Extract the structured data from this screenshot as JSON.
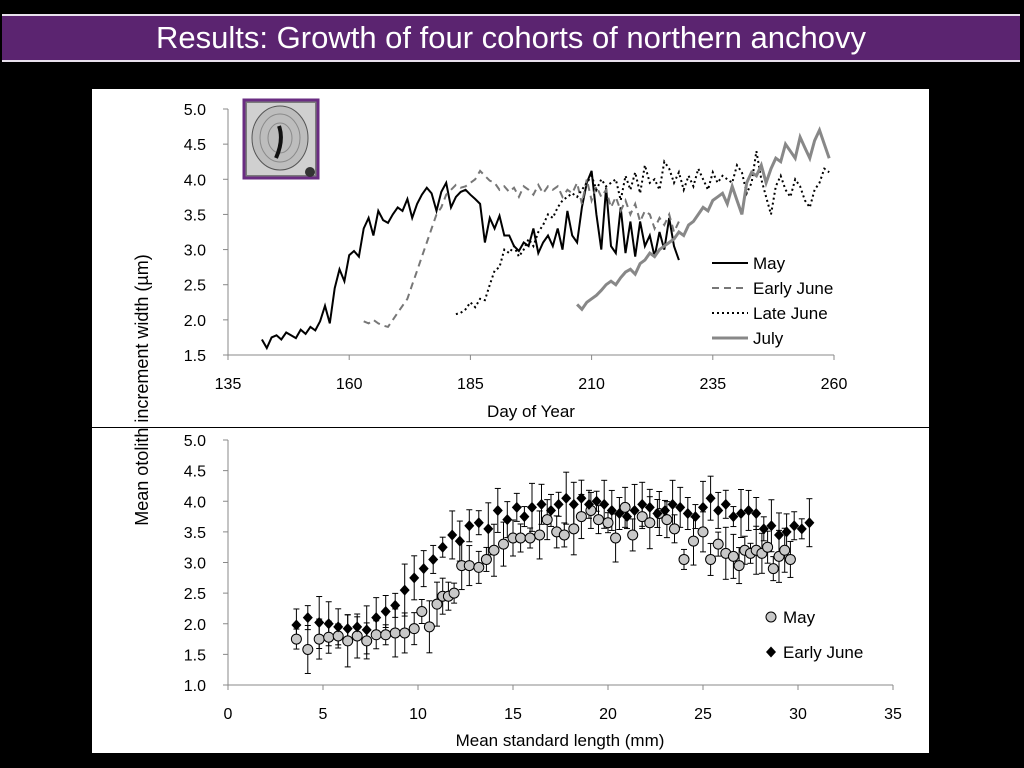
{
  "slide": {
    "title": "Results: Growth of four cohorts of northern anchovy"
  },
  "shared_ylabel": "Mean otolith increment width (µm)",
  "inset": {
    "icon": "otolith-photo",
    "border_color": "#6a2c82"
  },
  "chart_data": [
    {
      "type": "line",
      "xlabel": "Day of Year",
      "ylabel": "Mean otolith increment width (µm)",
      "xlim": [
        135,
        260
      ],
      "ylim": [
        1.5,
        5.0
      ],
      "xticks": [
        "135",
        "160",
        "185",
        "210",
        "235",
        "260"
      ],
      "yticks": [
        "1.5",
        "2.0",
        "2.5",
        "3.0",
        "3.5",
        "4.0",
        "4.5",
        "5.0"
      ],
      "grid": false,
      "legend": "right",
      "series": [
        {
          "name": "May",
          "style": "solid",
          "color": "#000000",
          "x": [
            142,
            143,
            144,
            145,
            146,
            147,
            148,
            149,
            150,
            151,
            152,
            153,
            154,
            155,
            156,
            157,
            158,
            159,
            160,
            161,
            162,
            163,
            164,
            165,
            166,
            167,
            168,
            169,
            170,
            171,
            172,
            173,
            174,
            175,
            176,
            177,
            178,
            179,
            180,
            181,
            182,
            183,
            184,
            185,
            186,
            187,
            188,
            189,
            190,
            191,
            192,
            193,
            194,
            195,
            196,
            197,
            198,
            199,
            200,
            201,
            202,
            203,
            204,
            205,
            206,
            207,
            208,
            209,
            210,
            211,
            212,
            213,
            214,
            215,
            216,
            217,
            218,
            219,
            220,
            221,
            222,
            223,
            224,
            225,
            226,
            227,
            228
          ],
          "y": [
            1.72,
            1.6,
            1.75,
            1.78,
            1.72,
            1.82,
            1.78,
            1.74,
            1.86,
            1.8,
            1.9,
            1.85,
            1.98,
            2.2,
            1.95,
            2.45,
            2.72,
            2.55,
            2.92,
            2.98,
            2.9,
            3.3,
            3.45,
            3.2,
            3.55,
            3.42,
            3.38,
            3.5,
            3.6,
            3.55,
            3.72,
            3.45,
            3.65,
            3.78,
            3.88,
            3.8,
            3.55,
            3.82,
            3.95,
            3.6,
            3.75,
            3.82,
            3.85,
            3.78,
            3.72,
            3.65,
            3.1,
            3.45,
            3.3,
            3.48,
            3.2,
            3.2,
            3.05,
            2.98,
            3.1,
            3.05,
            3.3,
            2.95,
            3.1,
            3.2,
            3.05,
            3.3,
            3.0,
            3.55,
            3.2,
            3.1,
            3.6,
            3.95,
            4.12,
            3.5,
            3.0,
            3.88,
            3.05,
            2.95,
            3.6,
            2.95,
            3.4,
            2.9,
            3.4,
            3.05,
            3.2,
            2.9,
            3.25,
            3.0,
            3.45,
            3.05,
            2.85
          ]
        },
        {
          "name": "Early June",
          "style": "dashed",
          "color": "#777777",
          "x": [
            163,
            164,
            165,
            166,
            167,
            168,
            169,
            170,
            171,
            172,
            173,
            174,
            175,
            176,
            177,
            178,
            179,
            180,
            181,
            182,
            183,
            184,
            185,
            186,
            187,
            188,
            189,
            190,
            191,
            192,
            193,
            194,
            195,
            196,
            197,
            198,
            199,
            200,
            201,
            202,
            203,
            204,
            205,
            206,
            207,
            208,
            209,
            210,
            211,
            212,
            213,
            214,
            215,
            216,
            217,
            218,
            219,
            220,
            221,
            222,
            223,
            224,
            225,
            226,
            227,
            228
          ],
          "y": [
            1.98,
            1.95,
            2.0,
            1.95,
            1.92,
            1.9,
            2.0,
            2.1,
            2.2,
            2.3,
            2.5,
            2.7,
            2.9,
            3.1,
            3.3,
            3.5,
            3.6,
            3.78,
            3.85,
            3.92,
            3.88,
            3.9,
            3.95,
            4.0,
            4.12,
            4.05,
            3.98,
            3.95,
            3.85,
            3.9,
            3.82,
            3.88,
            3.75,
            3.9,
            3.85,
            3.78,
            3.92,
            3.8,
            3.9,
            3.85,
            3.9,
            3.75,
            3.85,
            3.8,
            3.95,
            3.65,
            4.0,
            3.7,
            3.9,
            3.75,
            3.85,
            3.6,
            3.75,
            3.55,
            3.7,
            3.5,
            3.65,
            3.4,
            3.55,
            3.5,
            3.3,
            3.45,
            3.35,
            3.5,
            3.25,
            3.4
          ]
        },
        {
          "name": "Late June",
          "style": "dotted",
          "color": "#000000",
          "x": [
            182,
            183,
            184,
            185,
            186,
            187,
            188,
            189,
            190,
            191,
            192,
            193,
            194,
            195,
            196,
            197,
            198,
            199,
            200,
            201,
            202,
            203,
            204,
            205,
            206,
            207,
            208,
            209,
            210,
            211,
            212,
            213,
            214,
            215,
            216,
            217,
            218,
            219,
            220,
            221,
            222,
            223,
            224,
            225,
            226,
            227,
            228,
            229,
            230,
            231,
            232,
            233,
            234,
            235,
            236,
            237,
            238,
            239,
            240,
            241,
            242,
            243,
            244,
            245,
            246,
            247,
            248,
            249,
            250,
            251,
            252,
            253,
            254,
            255,
            256,
            257,
            258,
            259
          ],
          "y": [
            2.08,
            2.1,
            2.15,
            2.25,
            2.18,
            2.3,
            2.28,
            2.5,
            2.7,
            2.75,
            3.0,
            2.95,
            3.05,
            2.9,
            3.0,
            3.15,
            3.05,
            3.25,
            3.35,
            3.5,
            3.45,
            3.6,
            3.7,
            3.75,
            3.8,
            3.75,
            3.85,
            3.95,
            4.05,
            3.85,
            4.0,
            3.9,
            3.95,
            4.0,
            3.7,
            4.05,
            3.85,
            4.1,
            3.8,
            4.2,
            3.95,
            4.0,
            3.85,
            4.25,
            4.15,
            3.95,
            4.1,
            3.85,
            4.05,
            3.9,
            4.15,
            4.0,
            3.85,
            4.1,
            3.95,
            4.05,
            4.0,
            3.95,
            4.2,
            4.1,
            3.8,
            3.95,
            4.4,
            4.0,
            3.75,
            3.5,
            3.9,
            4.05,
            3.85,
            3.75,
            4.0,
            3.9,
            3.7,
            3.6,
            3.85,
            3.95,
            4.15,
            4.1
          ]
        },
        {
          "name": "July",
          "style": "solid",
          "color": "#888888",
          "x": [
            207,
            208,
            209,
            210,
            211,
            212,
            213,
            214,
            215,
            216,
            217,
            218,
            219,
            220,
            221,
            222,
            223,
            224,
            225,
            226,
            227,
            228,
            229,
            230,
            231,
            232,
            233,
            234,
            235,
            236,
            237,
            238,
            239,
            240,
            241,
            242,
            243,
            244,
            245,
            246,
            247,
            248,
            249,
            250,
            251,
            252,
            253,
            254,
            255,
            256,
            257,
            258,
            259
          ],
          "y": [
            2.22,
            2.15,
            2.25,
            2.3,
            2.35,
            2.42,
            2.5,
            2.55,
            2.5,
            2.6,
            2.68,
            2.72,
            2.65,
            2.8,
            2.85,
            2.95,
            2.9,
            3.0,
            3.05,
            3.1,
            3.15,
            3.25,
            3.2,
            3.35,
            3.4,
            3.5,
            3.6,
            3.55,
            3.7,
            3.75,
            3.8,
            3.65,
            3.9,
            3.7,
            3.5,
            3.95,
            4.1,
            4.05,
            4.2,
            3.95,
            4.15,
            4.3,
            4.25,
            4.5,
            4.4,
            4.3,
            4.6,
            4.45,
            4.3,
            4.55,
            4.7,
            4.5,
            4.3
          ]
        }
      ]
    },
    {
      "type": "scatter",
      "xlabel": "Mean standard length (mm)",
      "ylabel": "Mean otolith increment width (µm)",
      "xlim": [
        0,
        35
      ],
      "ylim": [
        1.0,
        5.0
      ],
      "xticks": [
        "0",
        "5",
        "10",
        "15",
        "20",
        "25",
        "30",
        "35"
      ],
      "yticks": [
        "1.0",
        "1.5",
        "2.0",
        "2.5",
        "3.0",
        "3.5",
        "4.0",
        "4.5",
        "5.0"
      ],
      "grid": false,
      "legend": "right",
      "series": [
        {
          "name": "May",
          "marker": "circle",
          "color": "#c8c8c8",
          "x": [
            3.6,
            4.2,
            4.8,
            5.3,
            5.8,
            6.3,
            6.8,
            7.3,
            7.8,
            8.3,
            8.8,
            9.3,
            9.8,
            10.2,
            10.6,
            11.0,
            11.3,
            11.6,
            11.9,
            12.3,
            12.7,
            13.2,
            13.6,
            14.0,
            14.5,
            15.0,
            15.4,
            15.9,
            16.4,
            16.8,
            17.3,
            17.7,
            18.2,
            18.6,
            19.1,
            19.5,
            20.0,
            20.4,
            20.9,
            21.3,
            21.8,
            22.2,
            22.7,
            23.1,
            23.5,
            24.0,
            24.5,
            25.0,
            25.4,
            25.8,
            26.2,
            26.6,
            26.9,
            27.2,
            27.5,
            27.8,
            28.1,
            28.4,
            28.7,
            29.0,
            29.3,
            29.6
          ],
          "y": [
            1.75,
            1.58,
            1.75,
            1.78,
            1.8,
            1.72,
            1.8,
            1.72,
            1.82,
            1.82,
            1.85,
            1.85,
            1.92,
            2.2,
            1.95,
            2.32,
            2.45,
            2.45,
            2.5,
            2.95,
            2.95,
            2.92,
            3.05,
            3.2,
            3.3,
            3.4,
            3.4,
            3.4,
            3.45,
            3.7,
            3.5,
            3.45,
            3.55,
            3.75,
            3.85,
            3.7,
            3.65,
            3.4,
            3.9,
            3.45,
            3.75,
            3.65,
            3.8,
            3.7,
            3.55,
            3.05,
            3.35,
            3.5,
            3.05,
            3.3,
            3.15,
            3.1,
            2.95,
            3.2,
            3.15,
            3.2,
            3.15,
            3.25,
            2.9,
            3.1,
            3.2,
            3.05
          ]
        },
        {
          "name": "Early June",
          "marker": "diamond",
          "color": "#000000",
          "x": [
            3.6,
            4.2,
            4.8,
            5.3,
            5.8,
            6.3,
            6.8,
            7.3,
            7.8,
            8.3,
            8.8,
            9.3,
            9.8,
            10.3,
            10.8,
            11.3,
            11.8,
            12.2,
            12.7,
            13.2,
            13.7,
            14.2,
            14.7,
            15.2,
            15.6,
            16.0,
            16.5,
            17.0,
            17.4,
            17.8,
            18.2,
            18.6,
            19.0,
            19.4,
            19.8,
            20.2,
            20.6,
            21.0,
            21.4,
            21.8,
            22.2,
            22.6,
            23.0,
            23.4,
            23.8,
            24.2,
            24.6,
            25.0,
            25.4,
            25.8,
            26.2,
            26.6,
            27.0,
            27.4,
            27.8,
            28.2,
            28.6,
            29.0,
            29.4,
            29.8,
            30.2,
            30.6
          ],
          "y": [
            1.98,
            2.1,
            2.02,
            2.0,
            1.95,
            1.92,
            1.95,
            1.9,
            2.1,
            2.2,
            2.3,
            2.55,
            2.75,
            2.9,
            3.05,
            3.25,
            3.45,
            3.35,
            3.6,
            3.65,
            3.55,
            3.85,
            3.7,
            3.9,
            3.75,
            3.9,
            3.95,
            3.85,
            3.95,
            4.05,
            3.95,
            4.05,
            3.95,
            4.0,
            3.95,
            3.85,
            3.8,
            3.75,
            3.85,
            3.95,
            3.9,
            3.8,
            3.85,
            3.95,
            3.9,
            3.8,
            3.75,
            3.9,
            4.05,
            3.85,
            3.95,
            3.75,
            3.8,
            3.85,
            3.8,
            3.55,
            3.6,
            3.45,
            3.5,
            3.6,
            3.55,
            3.65
          ]
        }
      ]
    }
  ]
}
